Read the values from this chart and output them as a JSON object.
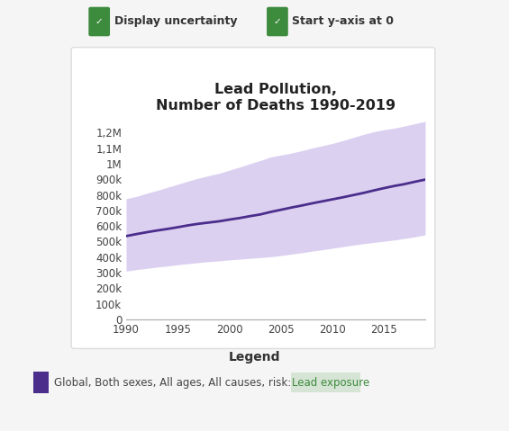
{
  "title": "Lead Pollution,\nNumber of Deaths 1990-2019",
  "years": [
    1990,
    1991,
    1992,
    1993,
    1994,
    1995,
    1996,
    1997,
    1998,
    1999,
    2000,
    2001,
    2002,
    2003,
    2004,
    2005,
    2006,
    2007,
    2008,
    2009,
    2010,
    2011,
    2012,
    2013,
    2014,
    2015,
    2016,
    2017,
    2018,
    2019
  ],
  "central": [
    535000,
    548000,
    560000,
    571000,
    581000,
    592000,
    604000,
    614000,
    622000,
    630000,
    641000,
    651000,
    663000,
    674000,
    690000,
    704000,
    718000,
    731000,
    745000,
    758000,
    771000,
    784000,
    798000,
    812000,
    828000,
    843000,
    857000,
    869000,
    884000,
    898000
  ],
  "upper": [
    775000,
    790000,
    810000,
    828000,
    848000,
    868000,
    888000,
    907000,
    923000,
    938000,
    958000,
    978000,
    1000000,
    1020000,
    1043000,
    1055000,
    1068000,
    1083000,
    1100000,
    1115000,
    1130000,
    1148000,
    1168000,
    1188000,
    1205000,
    1218000,
    1228000,
    1242000,
    1257000,
    1272000
  ],
  "lower": [
    310000,
    320000,
    328000,
    336000,
    343000,
    351000,
    358000,
    365000,
    371000,
    376000,
    382000,
    387000,
    392000,
    397000,
    402000,
    410000,
    419000,
    428000,
    438000,
    447000,
    457000,
    467000,
    477000,
    486000,
    494000,
    502000,
    510000,
    520000,
    530000,
    543000
  ],
  "line_color": "#4b2d8c",
  "fill_color": "#c9b8e8",
  "fill_alpha": 0.65,
  "xlim": [
    1990,
    2019
  ],
  "ylim": [
    0,
    1300000
  ],
  "yticks": [
    0,
    100000,
    200000,
    300000,
    400000,
    500000,
    600000,
    700000,
    800000,
    900000,
    1000000,
    1100000,
    1200000
  ],
  "ytick_labels": [
    "0",
    "100k",
    "200k",
    "300k",
    "400k",
    "500k",
    "600k",
    "700k",
    "800k",
    "900k",
    "1M",
    "1,1M",
    "1,2M"
  ],
  "xticks": [
    1990,
    1995,
    2000,
    2005,
    2010,
    2015
  ],
  "panel_bg": "#ffffff",
  "outer_bg": "#f5f5f5",
  "checkbox_color": "#3d8b3d",
  "legend_label_plain": "Global, Both sexes, All ages, All causes, risk: ",
  "legend_label_highlight": "Lead exposure",
  "legend_highlight_bg": "#c8ddc8",
  "legend_title": "Legend",
  "chart_border_color": "#dddddd"
}
